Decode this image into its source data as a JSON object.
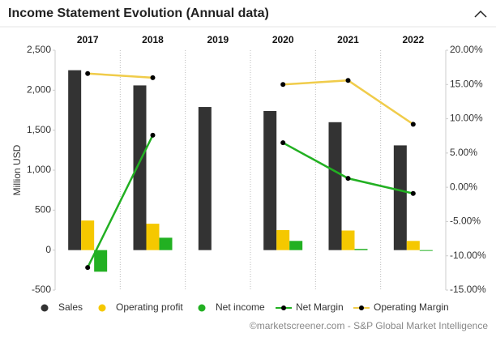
{
  "chart_data": {
    "type": "bar",
    "title": "Income Statement Evolution (Annual data)",
    "y_label": "Million USD",
    "source": "©marketscreener.com - S&P Global Market Intelligence",
    "categories": [
      "2017",
      "2018",
      "2019",
      "2020",
      "2021",
      "2022"
    ],
    "series": [
      {
        "name": "Sales",
        "color": "#333333",
        "values": [
          2250,
          2060,
          1790,
          1740,
          1600,
          1310
        ]
      },
      {
        "name": "Operating profit",
        "color": "#f5c800",
        "values": [
          370,
          330,
          null,
          250,
          245,
          115
        ]
      },
      {
        "name": "Net income",
        "color": "#22b022",
        "values": [
          -270,
          155,
          null,
          115,
          15,
          -10
        ]
      },
      {
        "name": "Net Margin",
        "color": "#22b022",
        "axis": "y2",
        "values": [
          -11.7,
          7.6,
          null,
          6.5,
          1.3,
          -0.9
        ]
      },
      {
        "name": "Operating Margin",
        "color": "#f0cc4a",
        "axis": "y2",
        "values": [
          16.6,
          16.0,
          null,
          15.0,
          15.6,
          9.2
        ]
      }
    ],
    "ylim": [
      -500,
      2500
    ],
    "yticks": [
      -500,
      0,
      500,
      {
        "value": 1000,
        "label": "1,000"
      },
      {
        "value": 1500,
        "label": "1,500"
      },
      {
        "value": 2000,
        "label": "2,000"
      },
      {
        "value": 2500,
        "label": "2,500"
      }
    ],
    "y2lim": [
      -15,
      20
    ],
    "y2ticks": [
      {
        "value": -15,
        "label": "-15.00%"
      },
      {
        "value": -10,
        "label": "-10.00%"
      },
      {
        "value": -5,
        "label": "-5.00%"
      },
      {
        "value": 0,
        "label": "0.00%"
      },
      {
        "value": 5,
        "label": "5.00%"
      },
      {
        "value": 10,
        "label": "10.00%"
      },
      {
        "value": 15,
        "label": "15.00%"
      },
      {
        "value": 20,
        "label": "20.00%"
      }
    ]
  }
}
